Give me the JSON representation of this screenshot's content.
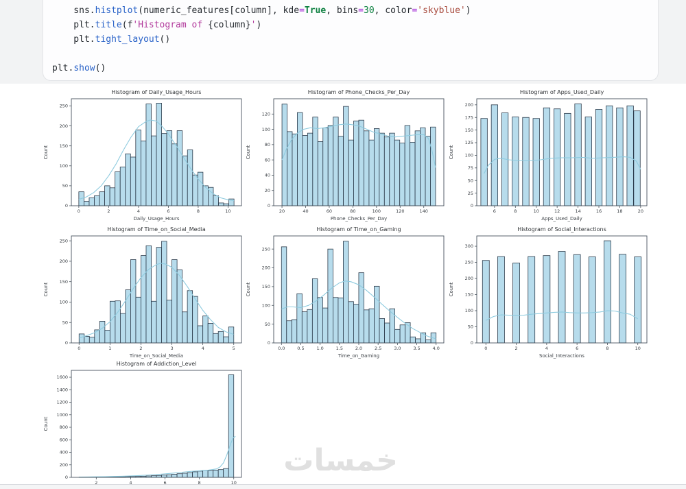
{
  "watermark": {
    "text": "خمسات"
  },
  "style": {
    "bar_fill": "#b7dcec",
    "bar_edge": "#2b3a4a",
    "kde": "#8ecbdf",
    "spine": "#46525c",
    "text": "#3a3f44",
    "title_text": "#303336"
  },
  "code_cell": {
    "lines": [
      [
        {
          "t": "    sns.",
          "c": "p"
        },
        {
          "t": "histplot",
          "c": "fn"
        },
        {
          "t": "(numeric_features[column], kde",
          "c": "p"
        },
        {
          "t": "=",
          "c": "op"
        },
        {
          "t": "True",
          "c": "kw"
        },
        {
          "t": ", bins",
          "c": "p"
        },
        {
          "t": "=",
          "c": "op"
        },
        {
          "t": "30",
          "c": "num"
        },
        {
          "t": ", color",
          "c": "p"
        },
        {
          "t": "=",
          "c": "op"
        },
        {
          "t": "'skyblue'",
          "c": "str"
        },
        {
          "t": ")",
          "c": "p"
        }
      ],
      [
        {
          "t": "    plt.",
          "c": "p"
        },
        {
          "t": "title",
          "c": "fn"
        },
        {
          "t": "(f",
          "c": "p"
        },
        {
          "t": "'Histogram of ",
          "c": "fstr"
        },
        {
          "t": "{column}",
          "c": "p"
        },
        {
          "t": "'",
          "c": "fstr"
        },
        {
          "t": ")",
          "c": "p"
        }
      ],
      [
        {
          "t": "    plt.",
          "c": "p"
        },
        {
          "t": "tight_layout",
          "c": "fn"
        },
        {
          "t": "()",
          "c": "p"
        }
      ],
      [],
      [
        {
          "t": "plt.",
          "c": "p"
        },
        {
          "t": "show",
          "c": "fn"
        },
        {
          "t": "()",
          "c": "p"
        }
      ]
    ]
  },
  "chart_data": [
    {
      "type": "bar",
      "title": "Histogram of Daily_Usage_Hours",
      "xlabel": "Daily_Usage_Hours",
      "ylabel": "Count",
      "xlim": [
        -0.5,
        10.9
      ],
      "ymax": 268,
      "yticks": [
        0,
        50,
        100,
        150,
        200,
        250
      ],
      "xticks": [
        [
          0,
          "0"
        ],
        [
          2,
          "2"
        ],
        [
          4,
          "4"
        ],
        [
          6,
          "6"
        ],
        [
          8,
          "8"
        ],
        [
          10,
          "10"
        ]
      ],
      "bars": {
        "x0": 0,
        "binw": 0.3467,
        "values": [
          35,
          11,
          20,
          25,
          35,
          50,
          45,
          85,
          97,
          130,
          122,
          190,
          162,
          255,
          175,
          257,
          181,
          188,
          155,
          188,
          125,
          140,
          77,
          84,
          50,
          46,
          25,
          7,
          5,
          17
        ]
      },
      "kde": [
        [
          0,
          16
        ],
        [
          0.5,
          22
        ],
        [
          1,
          33
        ],
        [
          1.5,
          50
        ],
        [
          2,
          75
        ],
        [
          2.5,
          105
        ],
        [
          3,
          140
        ],
        [
          3.5,
          172
        ],
        [
          4,
          198
        ],
        [
          4.5,
          211
        ],
        [
          4.8,
          215
        ],
        [
          5.2,
          212
        ],
        [
          5.6,
          198
        ],
        [
          6,
          180
        ],
        [
          6.5,
          152
        ],
        [
          7,
          122
        ],
        [
          7.5,
          93
        ],
        [
          8,
          67
        ],
        [
          8.5,
          46
        ],
        [
          9,
          30
        ],
        [
          9.5,
          20
        ],
        [
          10,
          15
        ],
        [
          10.4,
          13
        ]
      ]
    },
    {
      "type": "bar",
      "title": "Histogram of Phone_Checks_Per_Day",
      "xlabel": "Phone_Checks_Per_Day",
      "ylabel": "Count",
      "xlim": [
        13,
        157
      ],
      "ymax": 140,
      "yticks": [
        0,
        20,
        40,
        60,
        80,
        100,
        120
      ],
      "xticks": [
        [
          20,
          "20"
        ],
        [
          40,
          "40"
        ],
        [
          60,
          "60"
        ],
        [
          80,
          "80"
        ],
        [
          100,
          "100"
        ],
        [
          120,
          "120"
        ],
        [
          140,
          "140"
        ]
      ],
      "bars": {
        "x0": 20,
        "binw": 4.3333,
        "values": [
          133,
          97,
          94,
          122,
          92,
          95,
          116,
          84,
          102,
          105,
          116,
          91,
          130,
          86,
          111,
          112,
          98,
          86,
          101,
          95,
          90,
          95,
          86,
          82,
          105,
          83,
          98,
          102,
          91,
          103
        ]
      },
      "kde": [
        [
          20,
          60
        ],
        [
          24,
          75
        ],
        [
          28,
          86
        ],
        [
          33,
          95
        ],
        [
          38,
          100
        ],
        [
          44,
          102
        ],
        [
          50,
          101
        ],
        [
          56,
          102
        ],
        [
          62,
          104
        ],
        [
          68,
          106
        ],
        [
          74,
          107
        ],
        [
          80,
          106
        ],
        [
          86,
          104
        ],
        [
          92,
          100
        ],
        [
          98,
          96
        ],
        [
          104,
          94
        ],
        [
          110,
          91
        ],
        [
          116,
          90
        ],
        [
          122,
          91
        ],
        [
          128,
          92
        ],
        [
          134,
          93
        ],
        [
          140,
          93
        ],
        [
          144,
          88
        ],
        [
          147,
          72
        ],
        [
          150,
          50
        ]
      ]
    },
    {
      "type": "bar",
      "title": "Histogram of Apps_Used_Daily",
      "xlabel": "Apps_Used_Daily",
      "ylabel": "Count",
      "xlim": [
        4.3,
        20.6
      ],
      "ymax": 212,
      "yticks": [
        0,
        25,
        50,
        75,
        100,
        125,
        150,
        175,
        200
      ],
      "xticks": [
        [
          6,
          "6"
        ],
        [
          8,
          "8"
        ],
        [
          10,
          "10"
        ],
        [
          12,
          "12"
        ],
        [
          14,
          "14"
        ],
        [
          16,
          "16"
        ],
        [
          18,
          "18"
        ],
        [
          20,
          "20"
        ]
      ],
      "bars": {
        "centers": [
          5,
          6,
          7,
          8,
          9,
          10,
          11,
          12,
          13,
          14,
          15,
          16,
          17,
          18,
          19,
          19.65
        ],
        "barw": 0.62,
        "values": [
          173,
          200,
          184,
          176,
          175,
          173,
          194,
          192,
          183,
          202,
          176,
          191,
          198,
          194,
          198,
          188
        ]
      },
      "kde": [
        [
          5,
          64
        ],
        [
          5.4,
          80
        ],
        [
          6,
          92
        ],
        [
          6.6,
          94
        ],
        [
          7.4,
          91
        ],
        [
          8.4,
          89
        ],
        [
          9.4,
          89
        ],
        [
          10.4,
          91
        ],
        [
          11.4,
          94
        ],
        [
          12.4,
          95
        ],
        [
          13.4,
          95
        ],
        [
          14.4,
          96
        ],
        [
          15.4,
          94
        ],
        [
          16.4,
          95
        ],
        [
          17.4,
          96
        ],
        [
          18.4,
          97
        ],
        [
          19,
          96
        ],
        [
          19.6,
          88
        ],
        [
          20,
          72
        ]
      ]
    },
    {
      "type": "bar",
      "title": "Histogram of Time_on_Social_Media",
      "xlabel": "Time_on_Social_Media",
      "ylabel": "Count",
      "xlim": [
        -0.25,
        5.25
      ],
      "ymax": 262,
      "yticks": [
        0,
        50,
        100,
        150,
        200,
        250
      ],
      "xticks": [
        [
          0,
          "0"
        ],
        [
          1,
          "1"
        ],
        [
          2,
          "2"
        ],
        [
          3,
          "3"
        ],
        [
          4,
          "4"
        ],
        [
          5,
          "5"
        ]
      ],
      "bars": {
        "x0": 0,
        "binw": 0.1667,
        "values": [
          22,
          16,
          14,
          32,
          53,
          31,
          102,
          103,
          72,
          130,
          204,
          112,
          214,
          238,
          102,
          234,
          249,
          105,
          204,
          179,
          76,
          128,
          114,
          42,
          66,
          48,
          23,
          28,
          15,
          39
        ]
      },
      "kde": [
        [
          0,
          12
        ],
        [
          0.25,
          18
        ],
        [
          0.5,
          25
        ],
        [
          0.75,
          36
        ],
        [
          1,
          52
        ],
        [
          1.25,
          75
        ],
        [
          1.5,
          103
        ],
        [
          1.75,
          133
        ],
        [
          2,
          160
        ],
        [
          2.25,
          180
        ],
        [
          2.5,
          192
        ],
        [
          2.65,
          195
        ],
        [
          2.8,
          193
        ],
        [
          3,
          185
        ],
        [
          3.25,
          165
        ],
        [
          3.5,
          138
        ],
        [
          3.75,
          108
        ],
        [
          4,
          80
        ],
        [
          4.25,
          57
        ],
        [
          4.5,
          38
        ],
        [
          4.75,
          27
        ],
        [
          5,
          21
        ]
      ]
    },
    {
      "type": "bar",
      "title": "Histogram of Time_on_Gaming",
      "xlabel": "Time_on_Gaming",
      "ylabel": "Count",
      "xlim": [
        -0.2,
        4.2
      ],
      "ymax": 285,
      "yticks": [
        0,
        50,
        100,
        150,
        200,
        250
      ],
      "xticks": [
        [
          0,
          "0.0"
        ],
        [
          0.5,
          "0.5"
        ],
        [
          1,
          "1.0"
        ],
        [
          1.5,
          "1.5"
        ],
        [
          2,
          "2.0"
        ],
        [
          2.5,
          "2.5"
        ],
        [
          3,
          "3.0"
        ],
        [
          3.5,
          "3.5"
        ],
        [
          4,
          "4.0"
        ]
      ],
      "bars": {
        "x0": 0,
        "binw": 0.1333,
        "values": [
          256,
          59,
          62,
          131,
          83,
          89,
          171,
          121,
          93,
          250,
          121,
          120,
          271,
          110,
          103,
          187,
          88,
          91,
          151,
          65,
          53,
          91,
          36,
          48,
          54,
          16,
          11,
          27,
          8,
          27
        ]
      },
      "kde": [
        [
          0,
          90
        ],
        [
          0.15,
          96
        ],
        [
          0.3,
          96
        ],
        [
          0.5,
          94
        ],
        [
          0.7,
          100
        ],
        [
          0.9,
          112
        ],
        [
          1.1,
          128
        ],
        [
          1.3,
          146
        ],
        [
          1.5,
          160
        ],
        [
          1.65,
          165
        ],
        [
          1.8,
          163
        ],
        [
          2,
          155
        ],
        [
          2.2,
          140
        ],
        [
          2.4,
          122
        ],
        [
          2.6,
          103
        ],
        [
          2.8,
          85
        ],
        [
          3,
          68
        ],
        [
          3.2,
          52
        ],
        [
          3.4,
          38
        ],
        [
          3.6,
          27
        ],
        [
          3.8,
          17
        ],
        [
          4,
          11
        ]
      ]
    },
    {
      "type": "bar",
      "title": "Histogram of Social_Interactions",
      "xlabel": "Social_Interactions",
      "ylabel": "Count",
      "xlim": [
        -0.6,
        10.6
      ],
      "ymax": 332,
      "yticks": [
        0,
        50,
        100,
        150,
        200,
        250,
        300
      ],
      "xticks": [
        [
          0,
          "0"
        ],
        [
          2,
          "2"
        ],
        [
          4,
          "4"
        ],
        [
          6,
          "6"
        ],
        [
          8,
          "8"
        ],
        [
          10,
          "10"
        ]
      ],
      "bars": {
        "centers": [
          0,
          1,
          2,
          3,
          4,
          5,
          6,
          7,
          8,
          9,
          10
        ],
        "barw": 0.45,
        "values": [
          256,
          268,
          248,
          268,
          271,
          284,
          274,
          267,
          317,
          275,
          267
        ]
      },
      "kde": [
        [
          0,
          70
        ],
        [
          0.5,
          82
        ],
        [
          1,
          87
        ],
        [
          1.5,
          86
        ],
        [
          2,
          85
        ],
        [
          2.5,
          86
        ],
        [
          3,
          89
        ],
        [
          3.5,
          91
        ],
        [
          4,
          93
        ],
        [
          4.5,
          95
        ],
        [
          5,
          96
        ],
        [
          5.5,
          94
        ],
        [
          6,
          93
        ],
        [
          6.5,
          93
        ],
        [
          7,
          94
        ],
        [
          7.5,
          96
        ],
        [
          8,
          100
        ],
        [
          8.5,
          99
        ],
        [
          9,
          93
        ],
        [
          9.5,
          89
        ],
        [
          10,
          75
        ]
      ]
    },
    {
      "type": "bar",
      "title": "Histogram of Addiction_Level",
      "xlabel": "Addiction_Level",
      "ylabel": "Count",
      "xlim": [
        0.55,
        10.45
      ],
      "ymax": 1710,
      "yticks": [
        0,
        200,
        400,
        600,
        800,
        1000,
        1200,
        1400,
        1600
      ],
      "xticks": [
        [
          2,
          "2"
        ],
        [
          4,
          "4"
        ],
        [
          6,
          "6"
        ],
        [
          8,
          "8"
        ],
        [
          10,
          "10"
        ]
      ],
      "bars": {
        "x0": 1,
        "binw": 0.3,
        "values": [
          4,
          4,
          5,
          5,
          6,
          7,
          8,
          9,
          10,
          12,
          14,
          16,
          18,
          22,
          26,
          30,
          36,
          42,
          50,
          58,
          66,
          76,
          88,
          100,
          112,
          108,
          116,
          124,
          140,
          1640
        ]
      },
      "kde": [
        [
          1,
          6
        ],
        [
          1.5,
          7
        ],
        [
          2,
          9
        ],
        [
          2.5,
          11
        ],
        [
          3,
          14
        ],
        [
          3.5,
          18
        ],
        [
          4,
          23
        ],
        [
          4.5,
          29
        ],
        [
          5,
          36
        ],
        [
          5.5,
          45
        ],
        [
          6,
          56
        ],
        [
          6.5,
          68
        ],
        [
          7,
          82
        ],
        [
          7.5,
          95
        ],
        [
          8,
          105
        ],
        [
          8.5,
          115
        ],
        [
          9,
          135
        ],
        [
          9.2,
          165
        ],
        [
          9.4,
          230
        ],
        [
          9.6,
          360
        ],
        [
          9.8,
          520
        ],
        [
          9.95,
          625
        ],
        [
          10.1,
          655
        ]
      ]
    }
  ]
}
